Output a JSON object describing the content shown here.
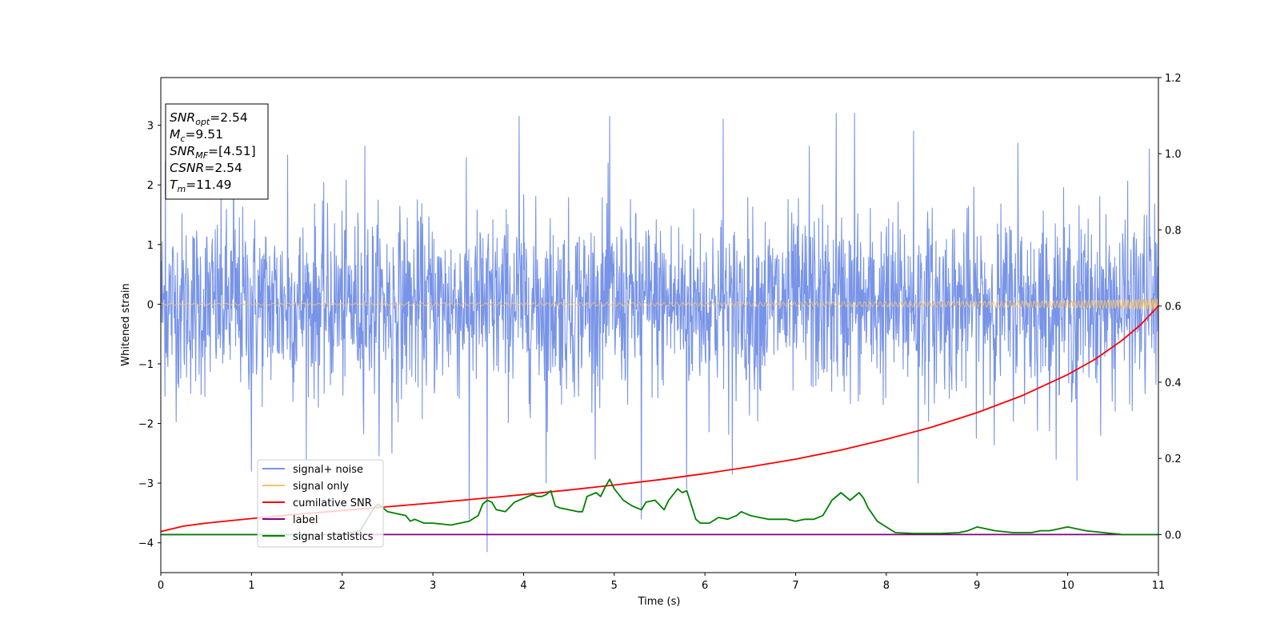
{
  "chart_data": {
    "type": "line",
    "title": "",
    "xlabel": "Time (s)",
    "ylabel": "Whitened strain",
    "y2label": "",
    "xlim": [
      0,
      11
    ],
    "ylim": [
      -4.5,
      3.8
    ],
    "y2lim": [
      -0.1,
      1.2
    ],
    "xticks": [
      0,
      1,
      2,
      3,
      4,
      5,
      6,
      7,
      8,
      9,
      10,
      11
    ],
    "yticks": [
      -4,
      -3,
      -2,
      -1,
      0,
      1,
      2,
      3
    ],
    "y2ticks": [
      0.0,
      0.2,
      0.4,
      0.6,
      0.8,
      1.0,
      1.2
    ],
    "xtick_labels": [
      "0",
      "1",
      "2",
      "3",
      "4",
      "5",
      "6",
      "7",
      "8",
      "9",
      "10",
      "11"
    ],
    "ytick_labels": [
      "−4",
      "−3",
      "−2",
      "−1",
      "0",
      "1",
      "2",
      "3"
    ],
    "y2tick_labels": [
      "0.0",
      "0.2",
      "0.4",
      "0.6",
      "0.8",
      "1.0",
      "1.2"
    ],
    "grid": false,
    "legend_position": "lower-left",
    "annotation": {
      "lines": [
        {
          "base": "SNR",
          "sub": "opt",
          "value": "=2.54"
        },
        {
          "base": "M",
          "sub": "c",
          "value": "=9.51"
        },
        {
          "base": "SNR",
          "sub": "MF",
          "value": "=[4.51]"
        },
        {
          "base": "CSNR",
          "sub": "",
          "value": "=2.54"
        },
        {
          "base": "T",
          "sub": "m",
          "value": "=11.49"
        }
      ]
    },
    "series": [
      {
        "name": "signal+ noise",
        "color": "#7894e8",
        "axis": "left",
        "style": "noise",
        "amplitude_std": 0.75,
        "n_samples": 2400,
        "spikes": [
          {
            "x": 0.05,
            "y": 2.4
          },
          {
            "x": 0.8,
            "y": 2.5
          },
          {
            "x": 1.0,
            "y": -2.8
          },
          {
            "x": 1.4,
            "y": 2.5
          },
          {
            "x": 2.25,
            "y": 2.65
          },
          {
            "x": 2.55,
            "y": -2.5
          },
          {
            "x": 3.4,
            "y": -3.6
          },
          {
            "x": 3.6,
            "y": -4.15
          },
          {
            "x": 3.95,
            "y": 3.15
          },
          {
            "x": 4.25,
            "y": -3.0
          },
          {
            "x": 4.95,
            "y": 3.15
          },
          {
            "x": 5.3,
            "y": -3.6
          },
          {
            "x": 5.8,
            "y": -3.1
          },
          {
            "x": 6.2,
            "y": 3.1
          },
          {
            "x": 6.3,
            "y": -2.85
          },
          {
            "x": 7.15,
            "y": 2.65
          },
          {
            "x": 7.45,
            "y": 3.2
          },
          {
            "x": 7.65,
            "y": 3.2
          },
          {
            "x": 8.3,
            "y": 2.9
          },
          {
            "x": 8.35,
            "y": -3.0
          },
          {
            "x": 9.45,
            "y": 2.7
          },
          {
            "x": 10.1,
            "y": -2.95
          },
          {
            "x": 10.9,
            "y": 2.6
          }
        ]
      },
      {
        "name": "signal only",
        "color": "#f5c46e",
        "axis": "left",
        "style": "chirp",
        "max_amplitude": 0.09
      },
      {
        "name": "cumilative SNR",
        "color": "#ff0000",
        "axis": "right",
        "x": [
          0,
          0.25,
          0.5,
          1,
          1.5,
          2,
          2.5,
          3,
          3.5,
          4,
          4.5,
          5,
          5.5,
          6,
          6.5,
          7,
          7.5,
          8,
          8.5,
          9,
          9.5,
          10,
          10.3,
          10.6,
          10.8,
          11
        ],
        "values": [
          0.008,
          0.022,
          0.03,
          0.042,
          0.053,
          0.063,
          0.073,
          0.083,
          0.094,
          0.105,
          0.117,
          0.13,
          0.144,
          0.16,
          0.178,
          0.198,
          0.222,
          0.25,
          0.282,
          0.32,
          0.365,
          0.42,
          0.46,
          0.51,
          0.55,
          0.6
        ]
      },
      {
        "name": "label",
        "color": "#800080",
        "axis": "right",
        "x": [
          0,
          11
        ],
        "values": [
          0.0,
          0.0
        ]
      },
      {
        "name": "signal statistics",
        "color": "#008000",
        "axis": "right",
        "x": [
          0,
          0.5,
          1,
          1.5,
          2,
          2.2,
          2.3,
          2.35,
          2.4,
          2.5,
          2.6,
          2.7,
          2.75,
          2.8,
          2.9,
          3.0,
          3.2,
          3.4,
          3.5,
          3.55,
          3.6,
          3.65,
          3.7,
          3.8,
          3.9,
          4.0,
          4.1,
          4.15,
          4.2,
          4.25,
          4.3,
          4.35,
          4.4,
          4.5,
          4.6,
          4.65,
          4.7,
          4.8,
          4.85,
          4.9,
          4.95,
          5.0,
          5.1,
          5.2,
          5.3,
          5.35,
          5.45,
          5.55,
          5.6,
          5.7,
          5.75,
          5.8,
          5.9,
          5.95,
          6.05,
          6.15,
          6.25,
          6.35,
          6.4,
          6.5,
          6.6,
          6.7,
          6.8,
          6.9,
          7.0,
          7.1,
          7.2,
          7.3,
          7.4,
          7.5,
          7.6,
          7.7,
          7.75,
          7.8,
          7.9,
          8.0,
          8.1,
          8.3,
          8.6,
          8.8,
          8.9,
          9.0,
          9.2,
          9.4,
          9.6,
          9.7,
          9.8,
          9.9,
          10.0,
          10.2,
          10.4,
          10.6,
          11
        ],
        "values": [
          0.0,
          0.0,
          0.0,
          0.0,
          0.0,
          0.01,
          0.05,
          0.07,
          0.08,
          0.06,
          0.055,
          0.05,
          0.035,
          0.04,
          0.03,
          0.03,
          0.025,
          0.035,
          0.05,
          0.08,
          0.09,
          0.085,
          0.065,
          0.06,
          0.085,
          0.095,
          0.105,
          0.1,
          0.1,
          0.105,
          0.115,
          0.075,
          0.07,
          0.065,
          0.06,
          0.06,
          0.1,
          0.11,
          0.1,
          0.125,
          0.145,
          0.12,
          0.09,
          0.075,
          0.065,
          0.085,
          0.09,
          0.065,
          0.09,
          0.12,
          0.11,
          0.115,
          0.04,
          0.03,
          0.03,
          0.045,
          0.04,
          0.05,
          0.06,
          0.05,
          0.045,
          0.04,
          0.04,
          0.04,
          0.035,
          0.04,
          0.04,
          0.05,
          0.09,
          0.11,
          0.09,
          0.11,
          0.095,
          0.07,
          0.035,
          0.02,
          0.005,
          0.003,
          0.003,
          0.005,
          0.01,
          0.02,
          0.01,
          0.005,
          0.005,
          0.01,
          0.01,
          0.015,
          0.02,
          0.01,
          0.005,
          0.0,
          0.0
        ]
      }
    ]
  }
}
